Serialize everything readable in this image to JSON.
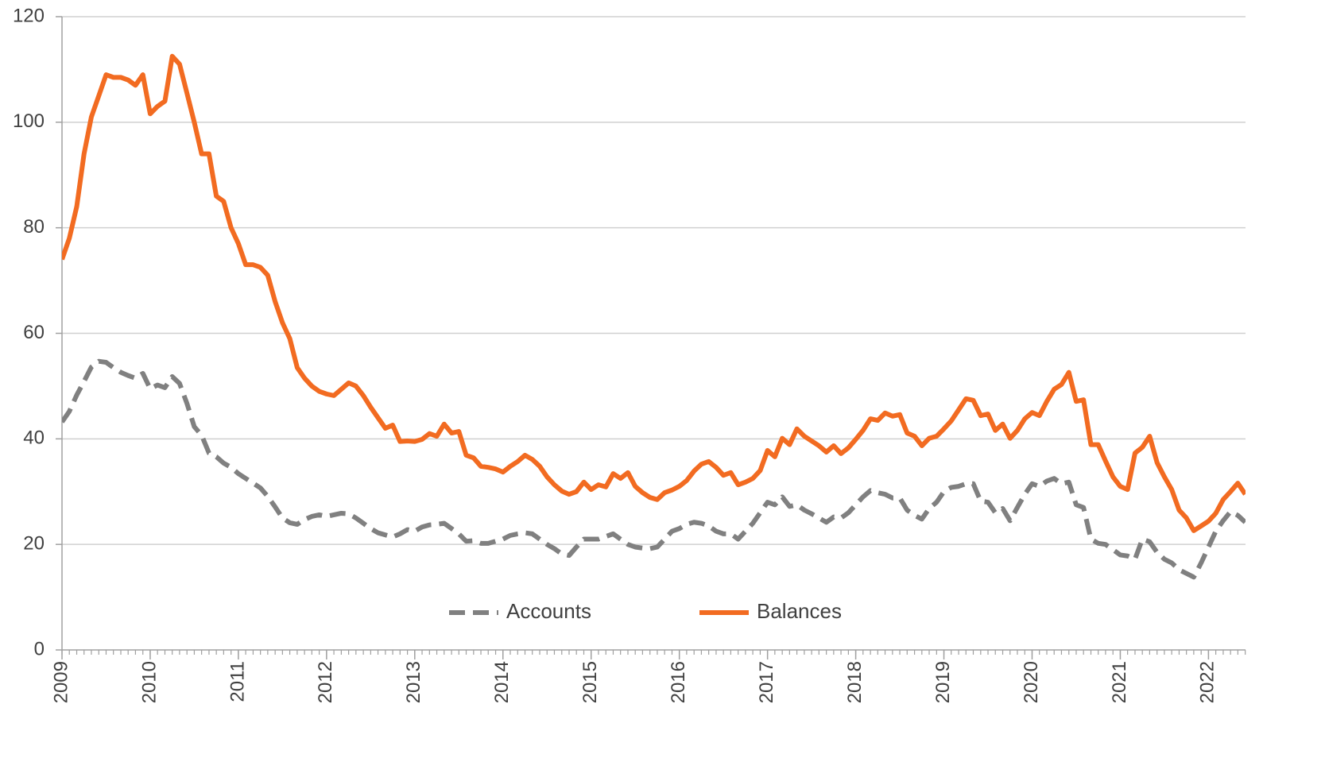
{
  "chart_data": {
    "type": "line",
    "x": [
      2009,
      2009.083,
      2009.167,
      2009.25,
      2009.333,
      2009.417,
      2009.5,
      2009.583,
      2009.667,
      2009.75,
      2009.833,
      2009.917,
      2010,
      2010.083,
      2010.167,
      2010.25,
      2010.333,
      2010.417,
      2010.5,
      2010.583,
      2010.667,
      2010.75,
      2010.833,
      2010.917,
      2011,
      2011.083,
      2011.167,
      2011.25,
      2011.333,
      2011.417,
      2011.5,
      2011.583,
      2011.667,
      2011.75,
      2011.833,
      2011.917,
      2012,
      2012.083,
      2012.167,
      2012.25,
      2012.333,
      2012.417,
      2012.5,
      2012.583,
      2012.667,
      2012.75,
      2012.833,
      2012.917,
      2013,
      2013.083,
      2013.167,
      2013.25,
      2013.333,
      2013.417,
      2013.5,
      2013.583,
      2013.667,
      2013.75,
      2013.833,
      2013.917,
      2014,
      2014.083,
      2014.167,
      2014.25,
      2014.333,
      2014.417,
      2014.5,
      2014.583,
      2014.667,
      2014.75,
      2014.833,
      2014.917,
      2015,
      2015.083,
      2015.167,
      2015.25,
      2015.333,
      2015.417,
      2015.5,
      2015.583,
      2015.667,
      2015.75,
      2015.833,
      2015.917,
      2016,
      2016.083,
      2016.167,
      2016.25,
      2016.333,
      2016.417,
      2016.5,
      2016.583,
      2016.667,
      2016.75,
      2016.833,
      2016.917,
      2017,
      2017.083,
      2017.167,
      2017.25,
      2017.333,
      2017.417,
      2017.5,
      2017.583,
      2017.667,
      2017.75,
      2017.833,
      2017.917,
      2018,
      2018.083,
      2018.167,
      2018.25,
      2018.333,
      2018.417,
      2018.5,
      2018.583,
      2018.667,
      2018.75,
      2018.833,
      2018.917,
      2019,
      2019.083,
      2019.167,
      2019.25,
      2019.333,
      2019.417,
      2019.5,
      2019.583,
      2019.667,
      2019.75,
      2019.833,
      2019.917,
      2020,
      2020.083,
      2020.167,
      2020.25,
      2020.333,
      2020.417,
      2020.5,
      2020.583,
      2020.667,
      2020.75,
      2020.833,
      2020.917,
      2021,
      2021.083,
      2021.167,
      2021.25,
      2021.333,
      2021.417,
      2021.5,
      2021.583,
      2021.667,
      2021.75,
      2021.833,
      2021.917,
      2022,
      2022.083,
      2022.167,
      2022.25,
      2022.333,
      2022.417
    ],
    "series": [
      {
        "name": "Accounts",
        "color": "#808080",
        "dash": true,
        "values": [
          43.2,
          45.2,
          48.3,
          50.9,
          53.6,
          54.7,
          54.5,
          53.5,
          52.6,
          52,
          51.5,
          52.4,
          49.5,
          50.2,
          49.7,
          51.8,
          50.5,
          46.7,
          42.3,
          40.7,
          37.3,
          36.6,
          35.4,
          34.6,
          33.4,
          32.5,
          31.6,
          30.7,
          29.1,
          27.1,
          25,
          24.1,
          23.8,
          24.7,
          25.3,
          25.6,
          25.3,
          25.6,
          25.9,
          25.8,
          25,
          24,
          23,
          22.2,
          21.8,
          21.4,
          22,
          22.8,
          22.5,
          23.3,
          23.7,
          23.8,
          24,
          23,
          22,
          20.6,
          20.7,
          20.2,
          20.2,
          20.6,
          21,
          21.7,
          22,
          22.2,
          22,
          21,
          20,
          19.2,
          18.2,
          17.9,
          19.5,
          21,
          21,
          21,
          21.5,
          22,
          21,
          20,
          19.5,
          19.3,
          19.2,
          19.5,
          21,
          22.5,
          23,
          23.8,
          24.2,
          24,
          23.5,
          22.5,
          22,
          22,
          21,
          22.5,
          24,
          26,
          28,
          27.5,
          29,
          27.2,
          27.5,
          26.5,
          25.8,
          25,
          24.2,
          25.2,
          25,
          26,
          27.5,
          29,
          30.2,
          29.8,
          29.5,
          28.8,
          28.8,
          26.5,
          25.5,
          24.8,
          26.8,
          28,
          30,
          30.8,
          31,
          31.5,
          31.5,
          28.2,
          28,
          26,
          26.8,
          24.5,
          27,
          29.5,
          31.5,
          31,
          32,
          32.5,
          31.5,
          31.8,
          27.5,
          27,
          21,
          20.2,
          20,
          19,
          18,
          17.8,
          17.2,
          21,
          20.5,
          18.5,
          17.2,
          16.5,
          15.2,
          14.5,
          13.8,
          16.5,
          19.5,
          22.5,
          24.5,
          26.2,
          25.5,
          24.2
        ]
      },
      {
        "name": "Balances",
        "color": "#f26b21",
        "dash": false,
        "values": [
          74,
          78,
          84,
          94,
          101,
          105,
          109,
          108.5,
          108.5,
          108,
          107,
          109,
          101.6,
          103,
          104,
          112.5,
          111,
          105.5,
          100,
          94,
          94,
          86,
          85,
          80,
          77,
          73,
          73,
          72.5,
          71,
          66,
          62,
          59,
          53.5,
          51.5,
          50,
          49,
          48.5,
          48.2,
          49.4,
          50.6,
          50,
          48.2,
          46,
          44,
          42,
          42.6,
          39.5,
          39.6,
          39.5,
          39.9,
          41,
          40.5,
          42.8,
          41.1,
          41.4,
          36.9,
          36.4,
          34.8,
          34.6,
          34.3,
          33.7,
          34.8,
          35.7,
          36.9,
          36.1,
          34.8,
          32.8,
          31.3,
          30.1,
          29.5,
          30,
          31.8,
          30.4,
          31.3,
          30.9,
          33.4,
          32.5,
          33.6,
          31,
          29.8,
          28.9,
          28.5,
          29.8,
          30.3,
          31,
          32.1,
          33.9,
          35.2,
          35.7,
          34.6,
          33.1,
          33.6,
          31.3,
          31.8,
          32.5,
          34,
          37.8,
          36.6,
          40.1,
          38.9,
          41.9,
          40.5,
          39.6,
          38.7,
          37.5,
          38.7,
          37.2,
          38.3,
          39.9,
          41.6,
          43.8,
          43.5,
          44.9,
          44.3,
          44.6,
          41.1,
          40.5,
          38.7,
          40.1,
          40.5,
          41.9,
          43.4,
          45.5,
          47.6,
          47.3,
          44.4,
          44.7,
          41.6,
          42.8,
          40.1,
          41.6,
          43.8,
          45,
          44.4,
          47.1,
          49.4,
          50.3,
          52.6,
          47.1,
          47.4,
          38.9,
          38.9,
          35.8,
          32.8,
          31,
          30.4,
          37.3,
          38.4,
          40.5,
          35.5,
          32.8,
          30.4,
          26.5,
          25,
          22.6,
          23.5,
          24.4,
          25.9,
          28.5,
          30,
          31.6,
          29.5
        ]
      }
    ],
    "xlim": [
      2009,
      2022.42
    ],
    "xticks": [
      2009,
      2010,
      2011,
      2012,
      2013,
      2014,
      2015,
      2016,
      2017,
      2018,
      2019,
      2020,
      2021,
      2022
    ],
    "ylim": [
      0,
      120
    ],
    "yticks": [
      0,
      20,
      40,
      60,
      80,
      100,
      120
    ],
    "grid": true,
    "legend": "bottom"
  }
}
